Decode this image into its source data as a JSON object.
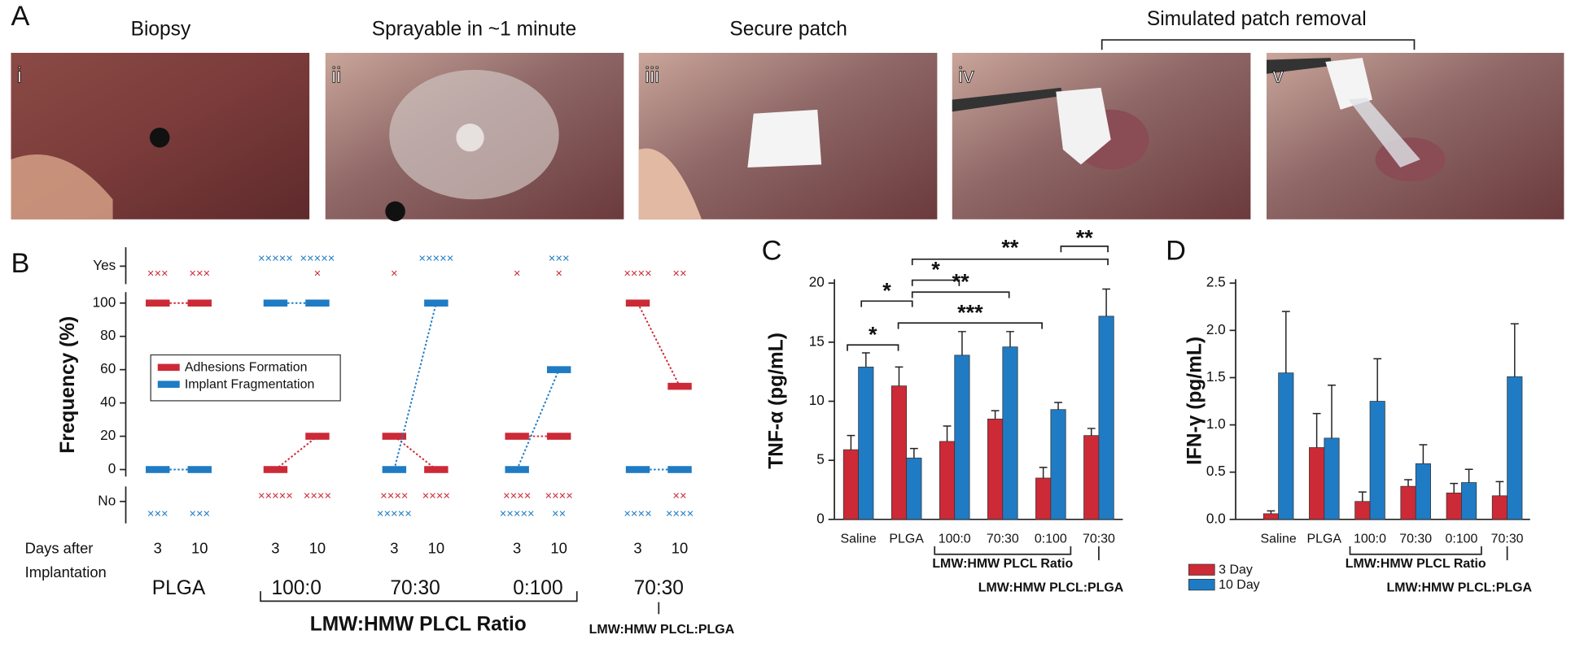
{
  "panel_a": {
    "letter": "A",
    "titles": [
      "Biopsy",
      "Sprayable in ~1 minute",
      "Secure patch"
    ],
    "bracket_title": "Simulated patch removal",
    "photo_labels": [
      "i",
      "ii",
      "iii",
      "iv",
      "v"
    ]
  },
  "panel_b": {
    "letter": "B",
    "y_label": "Frequency (%)",
    "ylim": [
      0,
      100
    ],
    "yticks": [
      0,
      20,
      40,
      60,
      80,
      100
    ],
    "outcome_labels": [
      "Yes",
      "No"
    ],
    "x_label": [
      "Days after",
      "Implantation"
    ],
    "series": [
      {
        "name": "Adhesions Formation",
        "color": "#cc2a36"
      },
      {
        "name": "Implant Fragmentation",
        "color": "#1f7bc4"
      }
    ],
    "groups": [
      {
        "name": "PLGA",
        "days": [
          "3",
          "10"
        ],
        "adhesions": [
          100,
          100
        ],
        "fragmentation": [
          0,
          0
        ],
        "yes_adhesions": [
          "×××",
          "×××"
        ],
        "yes_fragmentation": [
          null,
          null
        ],
        "no_adhesions": [
          null,
          null
        ],
        "no_fragmentation": [
          "×××",
          "×××"
        ]
      },
      {
        "name": "100:0",
        "days": [
          "3",
          "10"
        ],
        "adhesions": [
          0,
          20
        ],
        "fragmentation": [
          100,
          100
        ],
        "yes_adhesions": [
          null,
          "×"
        ],
        "yes_fragmentation": [
          "×××××",
          "×××××"
        ],
        "no_adhesions": [
          "×××××",
          "××××"
        ],
        "no_fragmentation": [
          null,
          null
        ]
      },
      {
        "name": "70:30",
        "days": [
          "3",
          "10"
        ],
        "adhesions": [
          20,
          0
        ],
        "fragmentation": [
          0,
          100
        ],
        "yes_adhesions": [
          "×",
          null
        ],
        "yes_fragmentation": [
          null,
          "×××××"
        ],
        "no_adhesions": [
          "××××",
          "××××"
        ],
        "no_fragmentation": [
          "×××××",
          null
        ]
      },
      {
        "name": "0:100",
        "days": [
          "3",
          "10"
        ],
        "adhesions": [
          20,
          20
        ],
        "fragmentation": [
          0,
          60
        ],
        "yes_adhesions": [
          "×",
          "×"
        ],
        "yes_fragmentation": [
          null,
          "×××"
        ],
        "no_adhesions": [
          "××××",
          "××××"
        ],
        "no_fragmentation": [
          "×××××",
          "××"
        ]
      },
      {
        "name": "70:30",
        "days": [
          "3",
          "10"
        ],
        "adhesions": [
          100,
          50
        ],
        "fragmentation": [
          0,
          0
        ],
        "yes_adhesions": [
          "××××",
          "××"
        ],
        "yes_fragmentation": [
          null,
          null
        ],
        "no_adhesions": [
          null,
          "××"
        ],
        "no_fragmentation": [
          "××××",
          "××××"
        ]
      }
    ],
    "group_labels": [
      "LMW:HMW PLCL Ratio",
      "LMW:HMW PLCL:PLGA"
    ]
  },
  "chart_data": [
    {
      "type": "bar",
      "panel": "C",
      "y_label": "TNF-α (pg/mL)",
      "ylim": [
        0,
        20
      ],
      "yticks": [
        0,
        5,
        10,
        15,
        20
      ],
      "categories": [
        "Saline",
        "PLGA",
        "100:0",
        "70:30",
        "0:100",
        "70:30"
      ],
      "series": [
        {
          "name": "3 Day",
          "color": "#cc2a36",
          "values": [
            5.9,
            11.3,
            6.6,
            8.5,
            3.5,
            7.1
          ],
          "errors": [
            1.2,
            1.6,
            1.3,
            0.7,
            0.9,
            0.6
          ]
        },
        {
          "name": "10 Day",
          "color": "#1f7bc4",
          "values": [
            12.9,
            5.2,
            13.9,
            14.6,
            9.3,
            17.2
          ],
          "errors": [
            1.2,
            0.8,
            2.0,
            1.3,
            0.6,
            2.3
          ]
        }
      ],
      "group_labels": [
        "LMW:HMW PLCL Ratio",
        "LMW:HMW PLCL:PLGA"
      ],
      "annotations": [
        "*",
        "*",
        "**",
        "*",
        "**",
        "***",
        "**"
      ]
    },
    {
      "type": "bar",
      "panel": "D",
      "y_label": "IFN-γ (pg/mL)",
      "ylim": [
        0,
        2.5
      ],
      "yticks": [
        {
          "value": 0,
          "label": "0.0"
        },
        0.5,
        {
          "value": 1,
          "label": "1.0"
        },
        1.5,
        {
          "value": 2,
          "label": "2.0"
        },
        2.5
      ],
      "categories": [
        "Saline",
        "PLGA",
        "100:0",
        "70:30",
        "0:100",
        "70:30"
      ],
      "series": [
        {
          "name": "3 Day",
          "color": "#cc2a36",
          "values": [
            0.06,
            0.76,
            0.19,
            0.35,
            0.28,
            0.25
          ],
          "errors": [
            0.03,
            0.36,
            0.1,
            0.07,
            0.1,
            0.15
          ]
        },
        {
          "name": "10 Day",
          "color": "#1f7bc4",
          "values": [
            1.55,
            0.86,
            1.25,
            0.59,
            0.39,
            1.51
          ],
          "errors": [
            0.65,
            0.56,
            0.45,
            0.2,
            0.14,
            0.56
          ]
        }
      ],
      "group_labels": [
        "LMW:HMW PLCL Ratio",
        "LMW:HMW PLCL:PLGA"
      ],
      "legend": "lower left"
    }
  ]
}
